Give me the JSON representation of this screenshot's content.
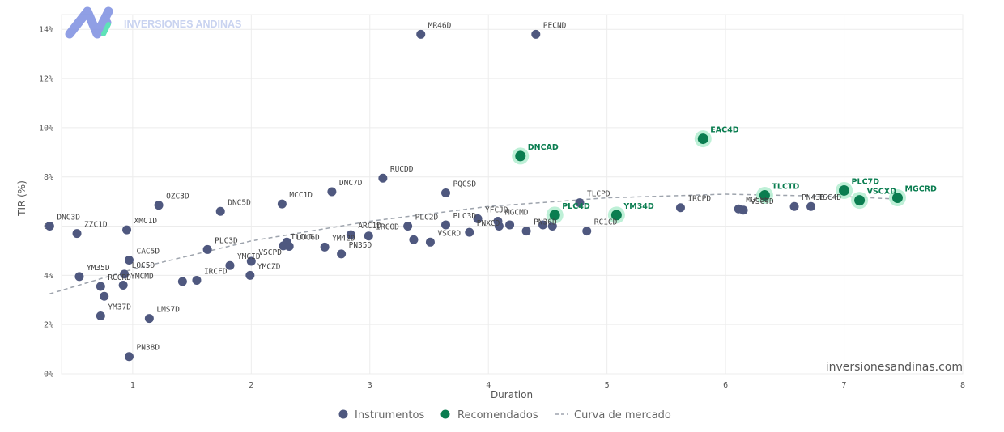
{
  "brand": {
    "name": "INVERSIONES ANDINAS",
    "url": "inversionesandinas.com"
  },
  "colors": {
    "instrument": "#4f587f",
    "recommended": "#0a7d50",
    "recommended_halo": "#b7eed3",
    "curve": "#9ea4ad",
    "grid": "#ececec"
  },
  "chart_data": {
    "type": "scatter",
    "xlabel": "Duration",
    "ylabel": "TIR (%)",
    "xlim": [
      0.4,
      8
    ],
    "ylim": [
      0,
      14.6
    ],
    "x_ticks": [
      1,
      2,
      3,
      4,
      5,
      6,
      7,
      8
    ],
    "y_ticks": [
      0,
      2,
      4,
      6,
      8,
      10,
      12,
      14
    ],
    "y_tick_suffix": "%",
    "grid": true,
    "legend_position": "bottom-center",
    "legend": [
      "Instrumentos",
      "Recomendados",
      "Curva de mercado"
    ],
    "series": [
      {
        "name": "Instrumentos",
        "points": [
          {
            "label": "DNC3D",
            "x": 0.3,
            "y": 6.0
          },
          {
            "label": "ZZC1D",
            "x": 0.53,
            "y": 5.7
          },
          {
            "label": "XMC1D",
            "x": 0.95,
            "y": 5.85
          },
          {
            "label": "OZC3D",
            "x": 1.22,
            "y": 6.85
          },
          {
            "label": "CAC5D",
            "x": 0.97,
            "y": 4.62
          },
          {
            "label": "LOC5D",
            "x": 0.93,
            "y": 4.05
          },
          {
            "label": "YM35D",
            "x": 0.55,
            "y": 3.95
          },
          {
            "label": "RCCRD",
            "x": 0.73,
            "y": 3.55
          },
          {
            "label": "YMCMD",
            "x": 0.92,
            "y": 3.6
          },
          {
            "label": "",
            "x": 0.76,
            "y": 3.15
          },
          {
            "label": "YM37D",
            "x": 0.73,
            "y": 2.35
          },
          {
            "label": "LMS7D",
            "x": 1.14,
            "y": 2.25
          },
          {
            "label": "PN38D",
            "x": 0.97,
            "y": 0.7
          },
          {
            "label": "DNC5D",
            "x": 1.74,
            "y": 6.6
          },
          {
            "label": "PLC3D",
            "x": 1.63,
            "y": 5.05
          },
          {
            "label": "IRCFD",
            "x": 1.54,
            "y": 3.8
          },
          {
            "label": "",
            "x": 1.42,
            "y": 3.75
          },
          {
            "label": "YMCID",
            "x": 1.82,
            "y": 4.4
          },
          {
            "label": "VSCPD",
            "x": 2.0,
            "y": 4.57
          },
          {
            "label": "YMCZD",
            "x": 1.99,
            "y": 4.0
          },
          {
            "label": "MCC1D",
            "x": 2.26,
            "y": 6.9
          },
          {
            "label": "TLCUD",
            "x": 2.27,
            "y": 5.2
          },
          {
            "label": "",
            "x": 2.3,
            "y": 5.35
          },
          {
            "label": "LOC6D",
            "x": 2.32,
            "y": 5.18
          },
          {
            "label": "YM42D",
            "x": 2.62,
            "y": 5.15
          },
          {
            "label": "PN35D",
            "x": 2.76,
            "y": 4.87
          },
          {
            "label": "DNC7D",
            "x": 2.68,
            "y": 7.4
          },
          {
            "label": "ARC1D",
            "x": 2.84,
            "y": 5.65
          },
          {
            "label": "IRCOD",
            "x": 2.99,
            "y": 5.6
          },
          {
            "label": "RUCDD",
            "x": 3.11,
            "y": 7.95
          },
          {
            "label": "PLC2D",
            "x": 3.32,
            "y": 6.0
          },
          {
            "label": "",
            "x": 3.37,
            "y": 5.45
          },
          {
            "label": "VSCRD",
            "x": 3.51,
            "y": 5.35
          },
          {
            "label": "PQCSD",
            "x": 3.64,
            "y": 7.35
          },
          {
            "label": "PLC3D",
            "x": 3.64,
            "y": 6.05
          },
          {
            "label": "PNXCD",
            "x": 3.84,
            "y": 5.75
          },
          {
            "label": "YFCJD",
            "x": 3.91,
            "y": 6.3
          },
          {
            "label": "MGCMD",
            "x": 4.08,
            "y": 6.2
          },
          {
            "label": "",
            "x": 4.09,
            "y": 6.0
          },
          {
            "label": "",
            "x": 4.18,
            "y": 6.05
          },
          {
            "label": "PN36D",
            "x": 4.32,
            "y": 5.8
          },
          {
            "label": "",
            "x": 4.46,
            "y": 6.05
          },
          {
            "label": "",
            "x": 4.54,
            "y": 6.0
          },
          {
            "label": "TLCPD",
            "x": 4.77,
            "y": 6.95
          },
          {
            "label": "RC1CD",
            "x": 4.83,
            "y": 5.8
          },
          {
            "label": "IRCPD",
            "x": 5.62,
            "y": 6.75
          },
          {
            "label": "MGCSD",
            "x": 6.11,
            "y": 6.7
          },
          {
            "label": "VSCTD",
            "x": 6.15,
            "y": 6.65
          },
          {
            "label": "PN43D",
            "x": 6.58,
            "y": 6.8
          },
          {
            "label": "TSC4D",
            "x": 6.72,
            "y": 6.8
          },
          {
            "label": "MR46D",
            "x": 3.43,
            "y": 13.8
          },
          {
            "label": "PECND",
            "x": 4.4,
            "y": 13.8
          }
        ]
      },
      {
        "name": "Recomendados",
        "points": [
          {
            "label": "DNCAD",
            "x": 4.27,
            "y": 8.85
          },
          {
            "label": "EAC4D",
            "x": 5.81,
            "y": 9.55
          },
          {
            "label": "PLC4D",
            "x": 4.56,
            "y": 6.45
          },
          {
            "label": "YM34D",
            "x": 5.08,
            "y": 6.45
          },
          {
            "label": "TLCTD",
            "x": 6.33,
            "y": 7.25
          },
          {
            "label": "PLC7D",
            "x": 7.0,
            "y": 7.45
          },
          {
            "label": "VSCXD",
            "x": 7.13,
            "y": 7.05
          },
          {
            "label": "MGCRD",
            "x": 7.45,
            "y": 7.15
          }
        ]
      },
      {
        "name": "Curva de mercado",
        "type": "line",
        "dash": true,
        "points": [
          {
            "x": 0.3,
            "y": 3.25
          },
          {
            "x": 1.0,
            "y": 4.25
          },
          {
            "x": 2.0,
            "y": 5.4
          },
          {
            "x": 3.0,
            "y": 6.2
          },
          {
            "x": 4.0,
            "y": 6.8
          },
          {
            "x": 5.0,
            "y": 7.15
          },
          {
            "x": 6.0,
            "y": 7.3
          },
          {
            "x": 7.0,
            "y": 7.2
          },
          {
            "x": 7.45,
            "y": 7.1
          }
        ]
      }
    ]
  }
}
